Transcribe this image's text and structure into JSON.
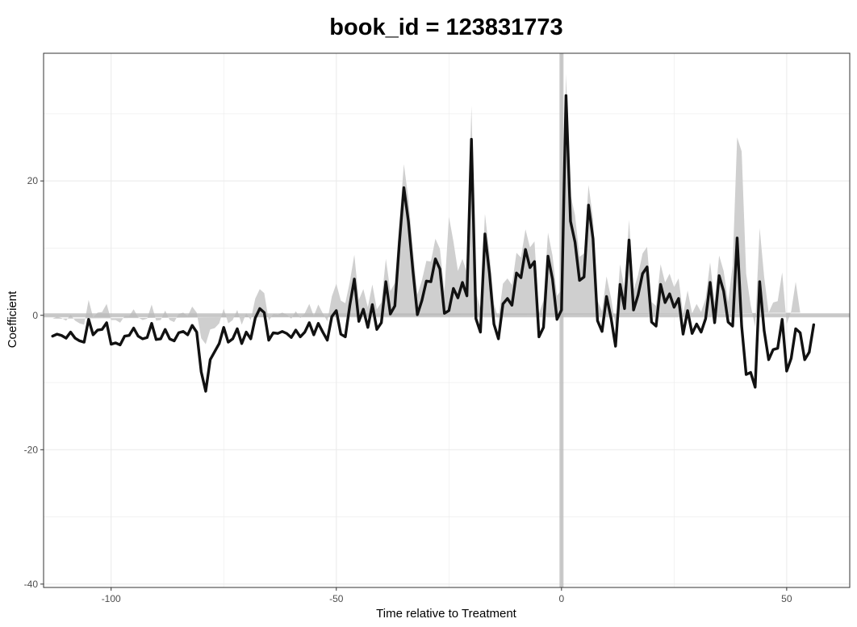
{
  "chart_data": {
    "type": "line",
    "title": "book_id = 123831773",
    "xlabel": "Time relative to Treatment",
    "ylabel": "Coefficient",
    "xlim": [
      -115,
      64
    ],
    "ylim": [
      -40.5,
      39
    ],
    "x_ticks": [
      -100,
      -50,
      0,
      50
    ],
    "x_tick_labels": [
      "-100",
      "-50",
      "0",
      "50"
    ],
    "y_ticks": [
      -40,
      -20,
      0,
      20
    ],
    "y_tick_labels": [
      "-40",
      "-20",
      "0",
      "20"
    ],
    "grid": true,
    "reference_lines": {
      "x": 0,
      "y": 0
    },
    "series": [
      {
        "x_start": -113,
        "x_step": 1,
        "values": [
          -3.1,
          -2.8,
          -3.0,
          -3.4,
          -2.5,
          -3.4,
          -3.8,
          -4.0,
          -0.6,
          -2.9,
          -2.2,
          -2.1,
          -1.1,
          -4.3,
          -4.1,
          -4.4,
          -3.1,
          -3.0,
          -1.9,
          -3.1,
          -3.5,
          -3.3,
          -1.2,
          -3.6,
          -3.5,
          -2.1,
          -3.5,
          -3.8,
          -2.6,
          -2.4,
          -2.9,
          -1.5,
          -2.5,
          -8.4,
          -11.3,
          -6.6,
          -5.4,
          -4.2,
          -1.8,
          -4.0,
          -3.5,
          -2.0,
          -4.2,
          -2.5,
          -3.5,
          -0.4,
          1.0,
          0.4,
          -3.7,
          -2.6,
          -2.7,
          -2.4,
          -2.7,
          -3.3,
          -2.2,
          -3.2,
          -2.5,
          -1.1,
          -2.9,
          -1.2,
          -2.5,
          -3.7,
          -0.2,
          0.7,
          -2.8,
          -3.2,
          1.5,
          5.4,
          -0.9,
          0.9,
          -1.8,
          1.6,
          -2.1,
          -1.1,
          5.0,
          0.2,
          1.4,
          10.8,
          19.0,
          14.0,
          6.7,
          0.1,
          2.2,
          5.1,
          5.0,
          8.4,
          6.9,
          0.3,
          0.7,
          4.0,
          2.6,
          4.9,
          2.9,
          26.2,
          -0.5,
          -2.5,
          12.1,
          6.3,
          -1.3,
          -3.5,
          1.7,
          2.5,
          1.5,
          6.3,
          5.6,
          9.8,
          7.1,
          8.0,
          -3.2,
          -1.8,
          8.8,
          5.4,
          -0.6,
          0.8,
          32.7,
          14.0,
          10.9,
          5.2,
          5.7,
          16.4,
          11.4,
          -0.8,
          -2.4,
          2.8,
          -0.4,
          -4.6,
          4.6,
          1.0,
          11.2,
          0.8,
          3.0,
          6.2,
          7.2,
          -1.0,
          -1.6,
          4.6,
          1.9,
          3.2,
          1.2,
          2.5,
          -2.8,
          0.7,
          -2.7,
          -1.3,
          -2.5,
          -0.5,
          4.9,
          -1.1,
          5.9,
          3.6,
          -1.0,
          -1.6,
          11.5,
          -1.6,
          -8.8,
          -8.5,
          -10.7,
          5.0,
          -2.3,
          -6.6,
          -5.1,
          -4.9,
          -0.6,
          -8.3,
          -6.4,
          -2.0,
          -2.6,
          -6.6,
          -5.5,
          -1.4
        ],
        "ci_halfwidth": [
          2.6,
          2.6,
          2.6,
          2.6,
          2.6,
          2.6,
          2.6,
          2.6,
          2.9,
          2.6,
          2.6,
          2.6,
          2.8,
          3.6,
          3.4,
          3.3,
          3.0,
          2.9,
          2.8,
          2.8,
          2.8,
          2.8,
          2.8,
          2.8,
          2.8,
          2.8,
          2.8,
          2.8,
          2.8,
          2.8,
          2.8,
          2.8,
          2.9,
          5.0,
          7.0,
          4.5,
          3.5,
          3.0,
          2.8,
          2.8,
          2.8,
          2.8,
          2.8,
          2.8,
          2.8,
          2.9,
          2.9,
          2.9,
          2.9,
          2.8,
          2.8,
          2.8,
          2.8,
          2.8,
          2.8,
          2.8,
          2.8,
          2.8,
          2.8,
          2.8,
          2.8,
          2.8,
          3.0,
          4.0,
          5.0,
          5.0,
          3.5,
          3.6,
          3.2,
          3.0,
          3.0,
          3.0,
          3.0,
          3.0,
          3.4,
          3.4,
          3.4,
          3.0,
          3.5,
          3.4,
          3.2,
          3.0,
          3.0,
          3.0,
          3.0,
          3.0,
          3.0,
          3.2,
          14.0,
          7.0,
          4.0,
          3.5,
          3.5,
          5.0,
          4.0,
          3.5,
          3.0,
          3.0,
          3.0,
          3.0,
          3.0,
          3.0,
          3.0,
          3.0,
          3.0,
          3.0,
          3.0,
          3.0,
          3.5,
          4.0,
          3.5,
          3.5,
          3.5,
          3.0,
          3.2,
          4.0,
          4.0,
          3.5,
          3.5,
          3.0,
          3.0,
          3.0,
          3.0,
          3.0,
          3.0,
          3.0,
          3.0,
          3.0,
          3.0,
          3.0,
          3.0,
          3.0,
          3.0,
          3.0,
          3.0,
          3.0,
          3.0,
          3.0,
          3.0,
          3.0,
          3.0,
          3.0,
          3.0,
          3.0,
          3.0,
          3.0,
          3.0,
          3.0,
          3.0,
          3.0,
          3.0,
          9.0,
          15.0,
          26.0,
          15.0,
          10.0,
          9.0,
          8.0,
          8.0,
          7.0,
          7.0,
          7.0,
          7.0,
          7.0,
          7.0,
          7.0,
          3.0
        ]
      }
    ],
    "colors": {
      "line": "#111111",
      "ribbon": "#cfcfcf",
      "reference": "#b8b8b8",
      "grid": "#ebebeb",
      "border": "#333333",
      "tick_text": "#4d4d4d"
    }
  }
}
